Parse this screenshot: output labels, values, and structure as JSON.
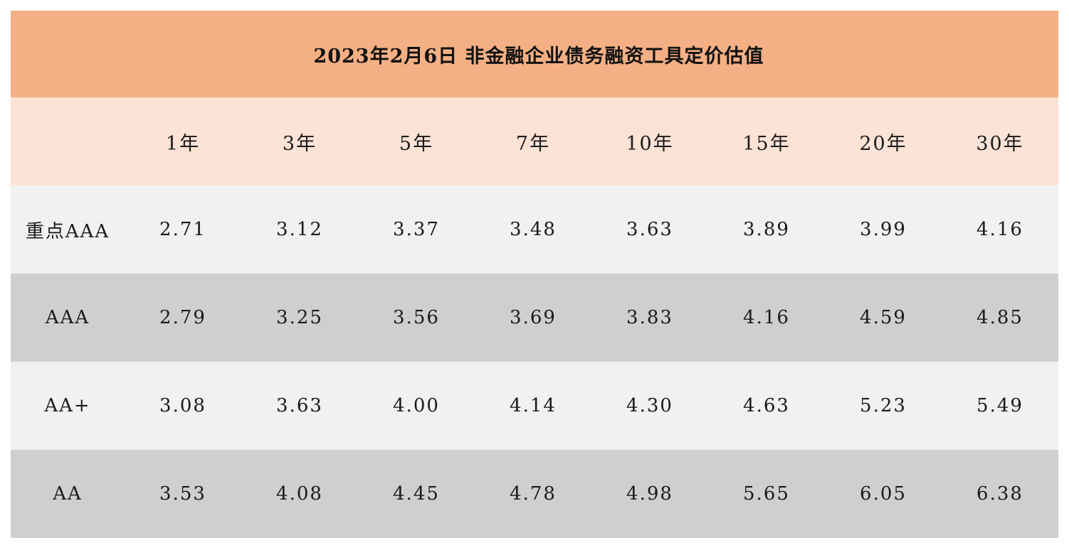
{
  "title": "2023年2月6日 非金融企业债务融资工具定价估值",
  "columns": [
    "",
    "1年",
    "3年",
    "5年",
    "7年",
    "10年",
    "15年",
    "20年",
    "30年"
  ],
  "rows": [
    {
      "rating": "重点AAA",
      "values": [
        "2.71",
        "3.12",
        "3.37",
        "3.48",
        "3.63",
        "3.89",
        "3.99",
        "4.16"
      ]
    },
    {
      "rating": "AAA",
      "values": [
        "2.79",
        "3.25",
        "3.56",
        "3.69",
        "3.83",
        "4.16",
        "4.59",
        "4.85"
      ]
    },
    {
      "rating": "AA+",
      "values": [
        "3.08",
        "3.63",
        "4.00",
        "4.14",
        "4.30",
        "4.63",
        "5.23",
        "5.49"
      ]
    },
    {
      "rating": "AA",
      "values": [
        "3.53",
        "4.08",
        "4.45",
        "4.78",
        "4.98",
        "5.65",
        "6.05",
        "6.38"
      ]
    }
  ],
  "colors": {
    "title_bg": "#f4b084",
    "header_bg": "#fde3d6",
    "row_light_bg": "#f2f1f1",
    "row_dark_bg": "#d0cece"
  }
}
